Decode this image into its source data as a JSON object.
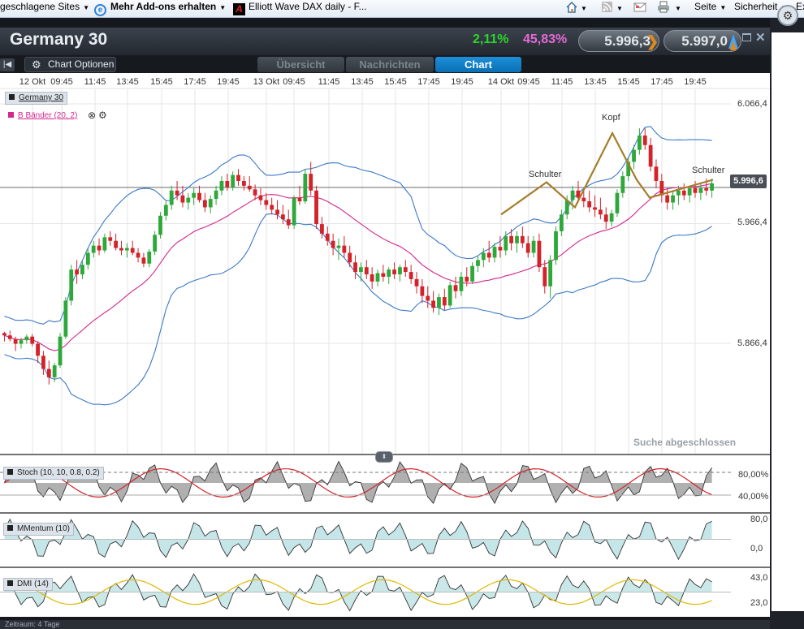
{
  "favorites_bar": {
    "items": [
      {
        "label": "geschlagene Sites",
        "caret": "▼"
      },
      {
        "label": "Mehr Add-ons erhalten",
        "caret": "▼"
      },
      {
        "label": "Elliott Wave DAX daily - F..."
      }
    ],
    "command_items": [
      {
        "label": "Seite",
        "caret": "▼"
      },
      {
        "label": "Sicherheit",
        "caret": "▼"
      },
      {
        "label": "Ex"
      }
    ],
    "toolbar_caret": "▼",
    "icons": [
      "home-icon",
      "rss-feed-icon",
      "read-mail-icon",
      "print-icon"
    ]
  },
  "instrument": {
    "name": "Germany 30",
    "change_pct": "2,11%",
    "secondary_pct": "45,83%",
    "sell_price": "5.996,3",
    "buy_price": "5.997,0",
    "up_color": "#2bd62b",
    "pct2_color": "#e56ad7",
    "arrow_color": "#e08a1c",
    "arrow_buy_color": "#3fa7ff"
  },
  "toolbar": {
    "chart_options_label": "Chart Optionen",
    "tabs": [
      {
        "label": "Übersicht",
        "active": false
      },
      {
        "label": "Nachrichten",
        "active": false
      },
      {
        "label": "Chart",
        "active": true
      }
    ]
  },
  "chart": {
    "time_labels": [
      "12 Okt",
      "09:45",
      "11:45",
      "13:45",
      "15:45",
      "17:45",
      "19:45",
      "13 Okt",
      "09:45",
      "11:45",
      "13:45",
      "15:45",
      "17:45",
      "19:45",
      "14 Okt",
      "09:45",
      "11:45",
      "13:45",
      "15:45",
      "17:45",
      "19:45"
    ],
    "legend": {
      "instrument": "Germany 30",
      "bands": "B Bänder (20, 2)"
    },
    "y_labels": [
      "6.066,4",
      "5.966,4",
      "5.866,4"
    ],
    "last_price": "5.996,6",
    "pattern_labels": {
      "left_shoulder": "Schulter",
      "head": "Kopf",
      "right_shoulder": "Schulter"
    },
    "status_text": "Suche abgeschlossen",
    "colors": {
      "up": "#2ea83a",
      "down": "#d3222a",
      "bands": "#3a78c8",
      "middle": "#d4268f",
      "pattern": "#a57d2a"
    }
  },
  "indicators": {
    "stoch": {
      "label": "Stoch (10, 10, 0.8, 0.2)",
      "levels": [
        "80,00%",
        "40,00%"
      ]
    },
    "momentum": {
      "label": "MMentum (10)",
      "levels": [
        "80,0",
        "0,0"
      ]
    },
    "dmi": {
      "label": "DMI (14)",
      "levels": [
        "43,0",
        "23,0"
      ]
    }
  },
  "bottom_bar": {
    "label": "Zeitraum: 4 Tage"
  },
  "chart_data": {
    "type": "candlestick",
    "title": "Germany 30",
    "ylim": [
      5810,
      6090
    ],
    "y_ticks": [
      6066.4,
      5966.4,
      5866.4
    ],
    "last_value": 5996.6,
    "series": [
      {
        "name": "B Bänder (20, 2)",
        "type": "bollinger",
        "period": 20,
        "stddev": 2
      },
      {
        "name": "Stoch (10, 10, 0.8, 0.2)",
        "type": "oscillator"
      },
      {
        "name": "MMentum (10)",
        "type": "oscillator"
      },
      {
        "name": "DMI (14)",
        "type": "oscillator"
      }
    ],
    "pattern": {
      "type": "head-and-shoulders",
      "labels": [
        "Schulter",
        "Kopf",
        "Schulter"
      ],
      "points": [
        {
          "t": "14 Okt 09:00",
          "y": 5974
        },
        {
          "t": "14 Okt 10:15",
          "y": 6001
        },
        {
          "t": "14 Okt 12:00",
          "y": 5980
        },
        {
          "t": "14 Okt 13:45",
          "y": 6042
        },
        {
          "t": "14 Okt 15:15",
          "y": 6003
        },
        {
          "t": "14 Okt 16:00",
          "y": 5988
        },
        {
          "t": "14 Okt 20:45",
          "y": 6003
        }
      ]
    },
    "candles": [
      [
        5875,
        5876,
        5868,
        5873
      ],
      [
        5873,
        5877,
        5868,
        5870
      ],
      [
        5870,
        5872,
        5860,
        5866
      ],
      [
        5866,
        5871,
        5862,
        5869
      ],
      [
        5869,
        5874,
        5866,
        5872
      ],
      [
        5872,
        5874,
        5864,
        5866
      ],
      [
        5866,
        5868,
        5850,
        5856
      ],
      [
        5856,
        5860,
        5840,
        5845
      ],
      [
        5845,
        5852,
        5832,
        5838
      ],
      [
        5838,
        5850,
        5834,
        5848
      ],
      [
        5848,
        5875,
        5846,
        5872
      ],
      [
        5872,
        5905,
        5870,
        5902
      ],
      [
        5902,
        5932,
        5898,
        5928
      ],
      [
        5928,
        5936,
        5916,
        5924
      ],
      [
        5924,
        5935,
        5920,
        5932
      ],
      [
        5932,
        5946,
        5928,
        5942
      ],
      [
        5942,
        5952,
        5938,
        5948
      ],
      [
        5948,
        5954,
        5940,
        5944
      ],
      [
        5944,
        5958,
        5942,
        5955
      ],
      [
        5955,
        5960,
        5948,
        5952
      ],
      [
        5952,
        5958,
        5944,
        5946
      ],
      [
        5946,
        5952,
        5940,
        5944
      ],
      [
        5944,
        5950,
        5938,
        5946
      ],
      [
        5946,
        5952,
        5940,
        5942
      ],
      [
        5942,
        5946,
        5934,
        5938
      ],
      [
        5938,
        5942,
        5930,
        5933
      ],
      [
        5933,
        5945,
        5930,
        5943
      ],
      [
        5943,
        5960,
        5940,
        5957
      ],
      [
        5957,
        5976,
        5954,
        5973
      ],
      [
        5973,
        5985,
        5969,
        5982
      ],
      [
        5982,
        5998,
        5978,
        5994
      ],
      [
        5994,
        6002,
        5986,
        5990
      ],
      [
        5990,
        5998,
        5980,
        5984
      ],
      [
        5984,
        5992,
        5978,
        5988
      ],
      [
        5988,
        5996,
        5982,
        5992
      ],
      [
        5992,
        5998,
        5984,
        5986
      ],
      [
        5986,
        5992,
        5976,
        5980
      ],
      [
        5980,
        5990,
        5975,
        5987
      ],
      [
        5987,
        5998,
        5982,
        5994
      ],
      [
        5994,
        6006,
        5990,
        6002
      ],
      [
        6002,
        6008,
        5994,
        5997
      ],
      [
        5997,
        6010,
        5994,
        6007
      ],
      [
        6007,
        6012,
        5998,
        6002
      ],
      [
        6002,
        6006,
        5994,
        5998
      ],
      [
        5998,
        6006,
        5993,
        5995
      ],
      [
        5995,
        5999,
        5986,
        5990
      ],
      [
        5990,
        5996,
        5982,
        5986
      ],
      [
        5986,
        5992,
        5978,
        5982
      ],
      [
        5982,
        5988,
        5974,
        5978
      ],
      [
        5978,
        5986,
        5970,
        5974
      ],
      [
        5974,
        5982,
        5966,
        5970
      ],
      [
        5970,
        5978,
        5962,
        5965
      ],
      [
        5965,
        5990,
        5962,
        5988
      ],
      [
        5988,
        5998,
        5982,
        5985
      ],
      [
        5985,
        6012,
        5983,
        6008
      ],
      [
        6008,
        6018,
        5990,
        5994
      ],
      [
        5994,
        5998,
        5962,
        5966
      ],
      [
        5966,
        5972,
        5954,
        5958
      ],
      [
        5958,
        5964,
        5948,
        5952
      ],
      [
        5952,
        5958,
        5940,
        5946
      ],
      [
        5946,
        5954,
        5936,
        5948
      ],
      [
        5948,
        5956,
        5938,
        5942
      ],
      [
        5942,
        5948,
        5930,
        5934
      ],
      [
        5934,
        5940,
        5920,
        5926
      ],
      [
        5926,
        5934,
        5918,
        5930
      ],
      [
        5930,
        5936,
        5920,
        5924
      ],
      [
        5924,
        5930,
        5912,
        5918
      ],
      [
        5918,
        5928,
        5914,
        5925
      ],
      [
        5925,
        5932,
        5918,
        5922
      ],
      [
        5922,
        5930,
        5916,
        5928
      ],
      [
        5928,
        5934,
        5920,
        5924
      ],
      [
        5924,
        5932,
        5918,
        5930
      ],
      [
        5930,
        5936,
        5922,
        5926
      ],
      [
        5926,
        5932,
        5916,
        5920
      ],
      [
        5920,
        5926,
        5908,
        5914
      ],
      [
        5914,
        5920,
        5900,
        5906
      ],
      [
        5906,
        5914,
        5896,
        5902
      ],
      [
        5902,
        5910,
        5892,
        5896
      ],
      [
        5896,
        5908,
        5890,
        5905
      ],
      [
        5905,
        5912,
        5894,
        5898
      ],
      [
        5898,
        5918,
        5896,
        5915
      ],
      [
        5915,
        5922,
        5904,
        5910
      ],
      [
        5910,
        5926,
        5906,
        5922
      ],
      [
        5922,
        5930,
        5914,
        5918
      ],
      [
        5918,
        5934,
        5916,
        5931
      ],
      [
        5931,
        5940,
        5926,
        5936
      ],
      [
        5936,
        5946,
        5930,
        5942
      ],
      [
        5942,
        5952,
        5934,
        5938
      ],
      [
        5938,
        5950,
        5934,
        5947
      ],
      [
        5947,
        5956,
        5938,
        5944
      ],
      [
        5944,
        5960,
        5940,
        5956
      ],
      [
        5956,
        5962,
        5944,
        5950
      ],
      [
        5950,
        5960,
        5942,
        5956
      ],
      [
        5956,
        5964,
        5946,
        5950
      ],
      [
        5950,
        5956,
        5938,
        5942
      ],
      [
        5942,
        5956,
        5938,
        5952
      ],
      [
        5952,
        5958,
        5926,
        5930
      ],
      [
        5930,
        5936,
        5908,
        5914
      ],
      [
        5914,
        5940,
        5904,
        5936
      ],
      [
        5936,
        5964,
        5932,
        5960
      ],
      [
        5960,
        5978,
        5956,
        5974
      ],
      [
        5974,
        5990,
        5970,
        5986
      ],
      [
        5986,
        5998,
        5978,
        5994
      ],
      [
        5994,
        6002,
        5984,
        5988
      ],
      [
        5988,
        5996,
        5980,
        5985
      ],
      [
        5985,
        5994,
        5976,
        5980
      ],
      [
        5980,
        5990,
        5972,
        5978
      ],
      [
        5978,
        5988,
        5970,
        5974
      ],
      [
        5974,
        5980,
        5962,
        5968
      ],
      [
        5968,
        5978,
        5964,
        5975
      ],
      [
        5975,
        5995,
        5972,
        5992
      ],
      [
        5992,
        6010,
        5988,
        6006
      ],
      [
        6006,
        6022,
        6002,
        6018
      ],
      [
        6018,
        6032,
        6012,
        6028
      ],
      [
        6028,
        6046,
        6024,
        6040
      ],
      [
        6040,
        6046,
        6028,
        6032
      ],
      [
        6032,
        6038,
        6010,
        6014
      ],
      [
        6014,
        6020,
        5996,
        6002
      ],
      [
        6002,
        6008,
        5984,
        5990
      ],
      [
        5990,
        5996,
        5978,
        5984
      ],
      [
        5984,
        5994,
        5978,
        5990
      ],
      [
        5990,
        5998,
        5982,
        5994
      ],
      [
        5994,
        6000,
        5986,
        5990
      ],
      [
        5990,
        5998,
        5984,
        5996
      ],
      [
        5996,
        6002,
        5988,
        5992
      ],
      [
        5992,
        6000,
        5986,
        5996
      ],
      [
        5996,
        6004,
        5990,
        5994
      ],
      [
        5994,
        6004,
        5988,
        6000
      ]
    ]
  }
}
